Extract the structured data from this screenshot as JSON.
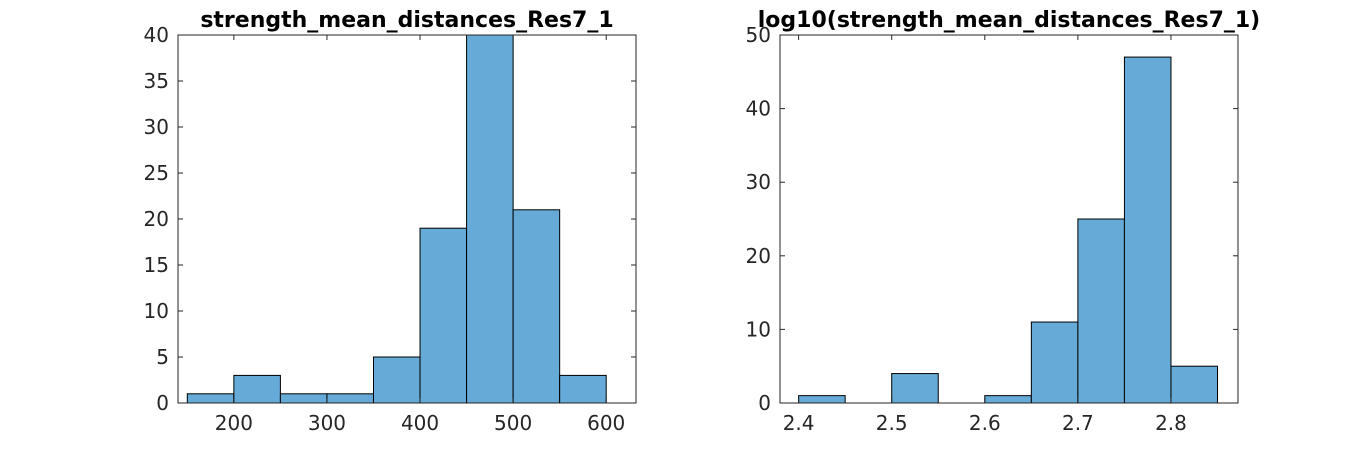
{
  "chart_data": [
    {
      "type": "bar",
      "title": "strength_mean_distances_Res7_1",
      "bin_edges": [
        150,
        200,
        250,
        300,
        350,
        400,
        450,
        500,
        550,
        600
      ],
      "values": [
        1,
        3,
        1,
        1,
        5,
        19,
        40,
        21,
        3
      ],
      "xlim": [
        140,
        632
      ],
      "ylim": [
        0,
        40
      ],
      "xticks": [
        200,
        300,
        400,
        500,
        600
      ],
      "yticks": [
        0,
        5,
        10,
        15,
        20,
        25,
        30,
        35,
        40
      ],
      "xlabel": "",
      "ylabel": "",
      "grid": false,
      "bar_color": "#66aad7"
    },
    {
      "type": "bar",
      "title": "log10(strength_mean_distances_Res7_1)",
      "bin_edges": [
        2.4,
        2.45,
        2.5,
        2.55,
        2.6,
        2.65,
        2.7,
        2.75,
        2.8,
        2.85
      ],
      "values": [
        1,
        0,
        4,
        0,
        1,
        11,
        25,
        47,
        5
      ],
      "xlim": [
        2.38,
        2.872
      ],
      "ylim": [
        0,
        50
      ],
      "xticks": [
        2.4,
        2.5,
        2.6,
        2.7,
        2.8
      ],
      "yticks": [
        0,
        10,
        20,
        30,
        40,
        50
      ],
      "xlabel": "",
      "ylabel": "",
      "grid": false,
      "bar_color": "#66aad7"
    }
  ]
}
